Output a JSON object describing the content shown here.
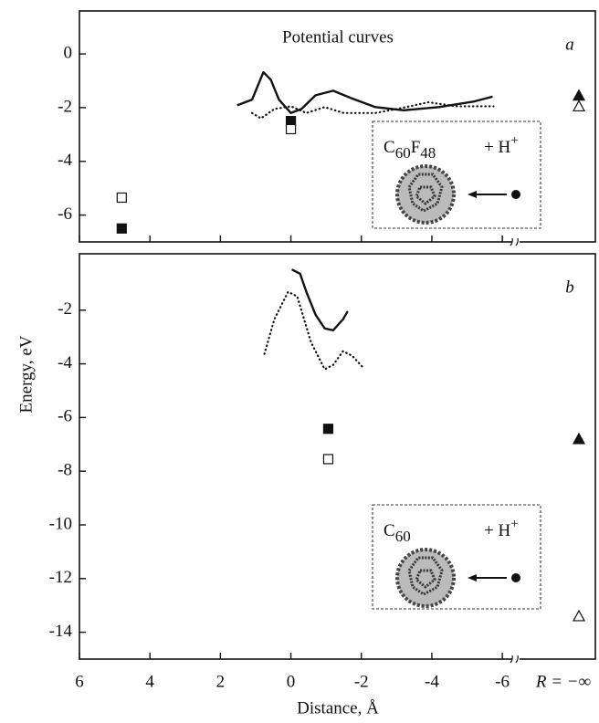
{
  "chart_data": [
    {
      "type": "line",
      "title": "Potential curves",
      "panel": "a",
      "xlim": [
        6,
        -8.64
      ],
      "ylim": [
        -7,
        1.6
      ],
      "yticks": [
        -6,
        -4,
        -2,
        0
      ],
      "inset": {
        "molecule": [
          "C",
          "60",
          "F",
          "48"
        ],
        "ion": [
          "+ H",
          "+"
        ]
      },
      "series": [
        {
          "style": "solid",
          "color": "#111",
          "x": [
            1.5,
            1.1,
            0.78,
            0.57,
            0.34,
            0,
            -0.3,
            -0.7,
            -1.2,
            -1.7,
            -2.4,
            -3.2,
            -4.2,
            -5.2,
            -5.7
          ],
          "values": [
            -1.9,
            -1.7,
            -0.68,
            -0.96,
            -1.7,
            -2.2,
            -2.05,
            -1.54,
            -1.37,
            -1.64,
            -1.98,
            -2.1,
            -1.98,
            -1.77,
            -1.6
          ]
        },
        {
          "style": "dotted",
          "color": "#111",
          "x": [
            1.1,
            0.85,
            0.47,
            0,
            -0.44,
            -0.96,
            -1.5,
            -2.4,
            -3.2,
            -3.9,
            -4.7,
            -5.75
          ],
          "values": [
            -2.2,
            -2.4,
            -2.05,
            -1.95,
            -2.2,
            -1.98,
            -2.2,
            -2.2,
            -2.0,
            -1.8,
            -1.95,
            -1.95
          ]
        },
        {
          "style": "filled-square",
          "color": "#111",
          "x": [
            4.8,
            0
          ],
          "values": [
            -6.5,
            -2.5
          ]
        },
        {
          "style": "open-square",
          "color": "#111",
          "x": [
            4.8,
            0
          ],
          "values": [
            -5.35,
            -2.8
          ]
        },
        {
          "style": "filled-triangle",
          "color": "#111",
          "at_infinity": true,
          "values": [
            -1.55
          ]
        },
        {
          "style": "open-triangle",
          "color": "#111",
          "at_infinity": true,
          "values": [
            -1.95
          ]
        }
      ]
    },
    {
      "type": "line",
      "panel": "b",
      "ylabel": "Energy, eV",
      "xlabel": "Distance, Å",
      "x_infinity_label": "R = −∞",
      "xlim": [
        6,
        -8.64
      ],
      "ylim": [
        -15,
        0.1
      ],
      "xticks": [
        6,
        4,
        2,
        0,
        -2,
        -4,
        -6
      ],
      "yticks": [
        -14,
        -12,
        -10,
        -8,
        -6,
        -4,
        -2
      ],
      "inset": {
        "molecule": [
          "C",
          "60"
        ],
        "ion": [
          "+ H",
          "+"
        ]
      },
      "series": [
        {
          "style": "solid",
          "color": "#111",
          "x": [
            -0.05,
            -0.26,
            -0.44,
            -0.7,
            -0.96,
            -1.2,
            -1.48,
            -1.6
          ],
          "values": [
            -0.5,
            -0.64,
            -1.32,
            -2.17,
            -2.68,
            -2.75,
            -2.34,
            -2.07
          ]
        },
        {
          "style": "dotted",
          "color": "#111",
          "x": [
            0.75,
            0.47,
            0.08,
            -0.18,
            -0.57,
            -0.96,
            -1.2,
            -1.48,
            -1.74,
            -2.05
          ],
          "values": [
            -3.63,
            -2.34,
            -1.32,
            -1.49,
            -3.19,
            -4.2,
            -4.04,
            -3.53,
            -3.7,
            -4.14
          ]
        },
        {
          "style": "filled-square",
          "color": "#111",
          "x": [
            -1.06
          ],
          "values": [
            -6.42
          ]
        },
        {
          "style": "open-square",
          "color": "#111",
          "x": [
            -1.06
          ],
          "values": [
            -7.55
          ]
        },
        {
          "style": "filled-triangle",
          "color": "#111",
          "at_infinity": true,
          "values": [
            -6.8
          ]
        },
        {
          "style": "open-triangle",
          "color": "#111",
          "at_infinity": true,
          "values": [
            -13.4
          ]
        }
      ]
    }
  ]
}
